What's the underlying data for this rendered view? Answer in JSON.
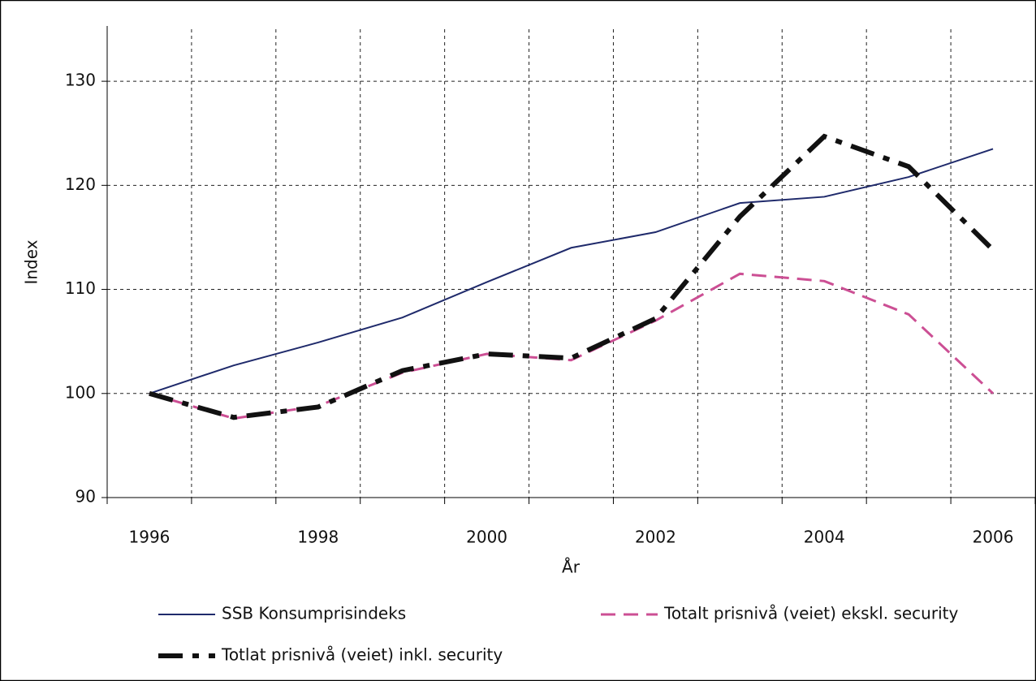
{
  "chart_data": {
    "type": "line",
    "x_label": "År",
    "y_label": "Index",
    "categories": [
      "1996",
      null,
      "1998",
      null,
      "2000",
      null,
      "2002",
      null,
      "2004",
      null,
      "2006"
    ],
    "series": [
      {
        "name": "SSB Konsumprisindeks",
        "color": "#1f2a6b",
        "values": [
          100,
          102.7,
          104.9,
          107.3,
          110.7,
          114.0,
          115.5,
          118.3,
          118.9,
          120.8,
          123.5
        ]
      },
      {
        "name": "Totalt prisnivå (veiet) ekskl. security",
        "color": "#cc4f94",
        "values": [
          100,
          97.6,
          98.8,
          102.0,
          103.8,
          103.2,
          107.0,
          111.5,
          110.8,
          107.6,
          100.0
        ]
      },
      {
        "name": "Totlat prisnivå (veiet) inkl. security",
        "color": "#111111",
        "values": [
          100,
          97.7,
          98.7,
          102.2,
          103.8,
          103.4,
          107.2,
          117.0,
          124.7,
          121.8,
          113.8
        ]
      }
    ],
    "ylim": [
      90,
      135
    ],
    "yticks": [
      90,
      100,
      110,
      120,
      130
    ],
    "grid": true
  }
}
